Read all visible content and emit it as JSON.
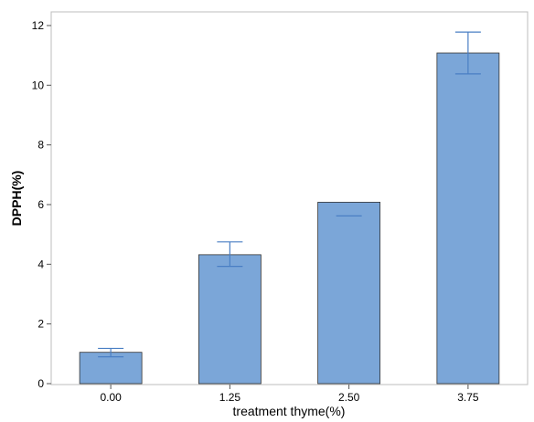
{
  "chart_data": {
    "type": "bar",
    "categories": [
      "0.00",
      "1.25",
      "2.50",
      "3.75"
    ],
    "values": [
      1.05,
      4.32,
      6.08,
      11.08
    ],
    "error_low": [
      0.9,
      3.93,
      5.62,
      10.38
    ],
    "error_high": [
      1.18,
      4.75,
      5.62,
      11.78
    ],
    "xlabel": "treatment thyme(%)",
    "ylabel": "DPPH(%)",
    "ylim": [
      0,
      12.4
    ],
    "yticks": [
      "0",
      "2",
      "4",
      "6",
      "8",
      "10",
      "12"
    ],
    "grid": false,
    "legend": "none",
    "bar_color": "#7ba6d8",
    "bar_edge_color": "#333333",
    "error_color": "#4a7fc4"
  }
}
